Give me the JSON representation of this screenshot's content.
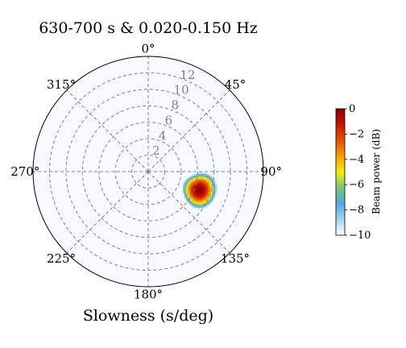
{
  "chart_data": {
    "type": "heatmap",
    "projection": "polar",
    "title": "630-700 s & 0.020-0.150 Hz",
    "xlabel": "Slowness (s/deg)",
    "theta_direction": "clockwise",
    "theta_zero_location": "top",
    "theta_ticks": [
      "0°",
      "45°",
      "90°",
      "135°",
      "180°",
      "225°",
      "270°",
      "315°"
    ],
    "theta_tick_values_deg": [
      0,
      45,
      90,
      135,
      180,
      225,
      270,
      315
    ],
    "r_ticks": [
      2,
      4,
      6,
      8,
      10,
      12
    ],
    "r_tick_labels": [
      "2",
      "4",
      "6",
      "8",
      "10",
      "12"
    ],
    "r_range": [
      0,
      14
    ],
    "grid": true,
    "colorbar": {
      "label": "Beam power (dB)",
      "range": [
        -10,
        0
      ],
      "ticks": [
        0,
        -2,
        -4,
        -6,
        -8,
        -10
      ],
      "tick_labels": [
        "0",
        "−2",
        "−4",
        "−6",
        "−8",
        "−10"
      ],
      "colormap_stops": [
        "#ffffff",
        "#a6d4f2",
        "#4ea8e0",
        "#7cc37a",
        "#f5f000",
        "#f5a000",
        "#e85000",
        "#c81400",
        "#8c0000"
      ]
    },
    "peak": {
      "azimuth_deg": 110,
      "slowness_s_per_deg": 6.6,
      "power_db": 0
    },
    "beam_spread": {
      "azimuth_sigma_deg": 9,
      "slowness_sigma": 1.0
    }
  }
}
